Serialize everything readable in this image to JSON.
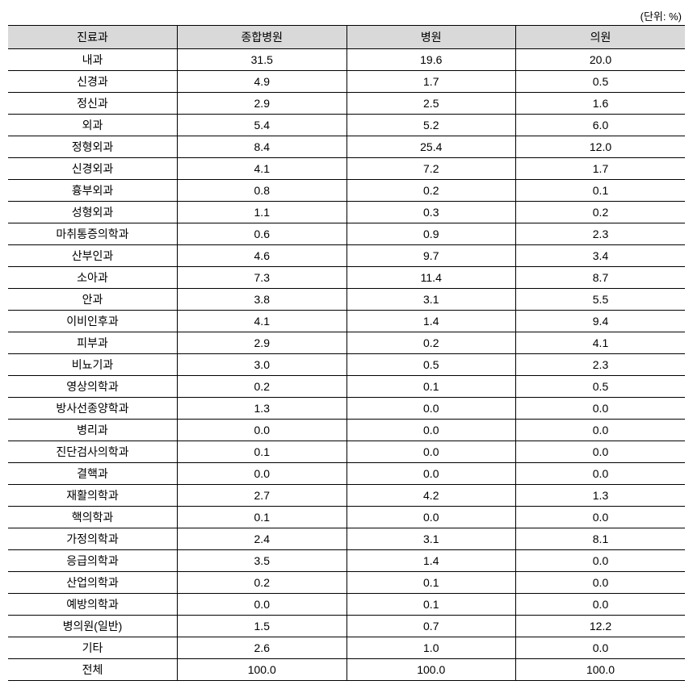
{
  "unit_label": "(단위: %)",
  "table": {
    "columns": [
      "진료과",
      "종합병원",
      "병원",
      "의원"
    ],
    "rows": [
      [
        "내과",
        "31.5",
        "19.6",
        "20.0"
      ],
      [
        "신경과",
        "4.9",
        "1.7",
        "0.5"
      ],
      [
        "정신과",
        "2.9",
        "2.5",
        "1.6"
      ],
      [
        "외과",
        "5.4",
        "5.2",
        "6.0"
      ],
      [
        "정형외과",
        "8.4",
        "25.4",
        "12.0"
      ],
      [
        "신경외과",
        "4.1",
        "7.2",
        "1.7"
      ],
      [
        "흉부외과",
        "0.8",
        "0.2",
        "0.1"
      ],
      [
        "성형외과",
        "1.1",
        "0.3",
        "0.2"
      ],
      [
        "마취통증의학과",
        "0.6",
        "0.9",
        "2.3"
      ],
      [
        "산부인과",
        "4.6",
        "9.7",
        "3.4"
      ],
      [
        "소아과",
        "7.3",
        "11.4",
        "8.7"
      ],
      [
        "안과",
        "3.8",
        "3.1",
        "5.5"
      ],
      [
        "이비인후과",
        "4.1",
        "1.4",
        "9.4"
      ],
      [
        "피부과",
        "2.9",
        "0.2",
        "4.1"
      ],
      [
        "비뇨기과",
        "3.0",
        "0.5",
        "2.3"
      ],
      [
        "영상의학과",
        "0.2",
        "0.1",
        "0.5"
      ],
      [
        "방사선종양학과",
        "1.3",
        "0.0",
        "0.0"
      ],
      [
        "병리과",
        "0.0",
        "0.0",
        "0.0"
      ],
      [
        "진단검사의학과",
        "0.1",
        "0.0",
        "0.0"
      ],
      [
        "결핵과",
        "0.0",
        "0.0",
        "0.0"
      ],
      [
        "재활의학과",
        "2.7",
        "4.2",
        "1.3"
      ],
      [
        "핵의학과",
        "0.1",
        "0.0",
        "0.0"
      ],
      [
        "가정의학과",
        "2.4",
        "3.1",
        "8.1"
      ],
      [
        "응급의학과",
        "3.5",
        "1.4",
        "0.0"
      ],
      [
        "산업의학과",
        "0.2",
        "0.1",
        "0.0"
      ],
      [
        "예방의학과",
        "0.0",
        "0.1",
        "0.0"
      ],
      [
        "병의원(일반)",
        "1.5",
        "0.7",
        "12.2"
      ],
      [
        "기타",
        "2.6",
        "1.0",
        "0.0"
      ],
      [
        "전체",
        "100.0",
        "100.0",
        "100.0"
      ]
    ]
  }
}
